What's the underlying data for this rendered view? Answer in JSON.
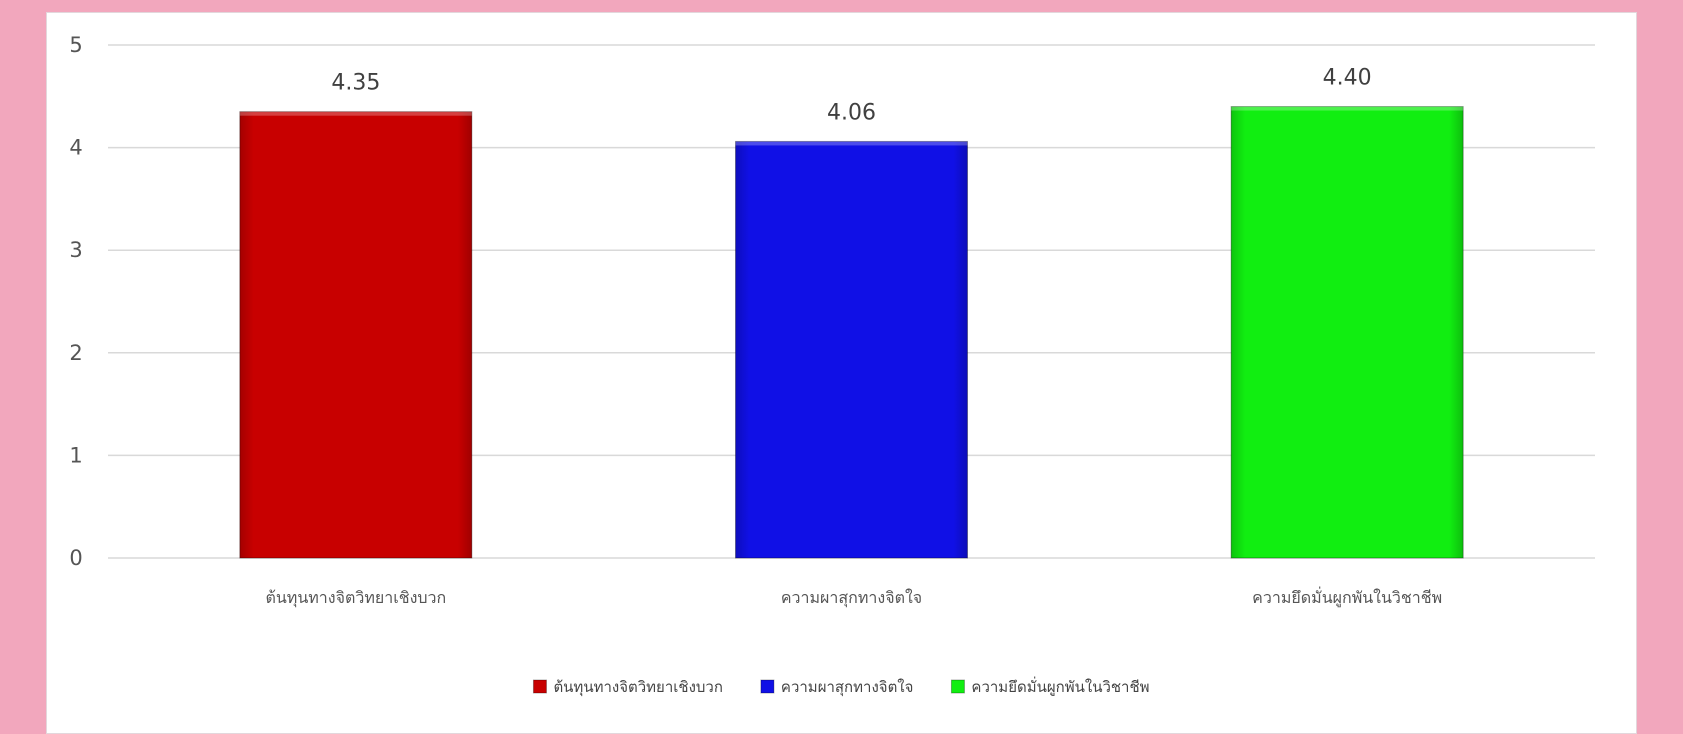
{
  "chart_data": {
    "type": "bar",
    "categories": [
      "ต้นทุนทางจิตวิทยาเชิงบวก",
      "ความผาสุกทางจิตใจ",
      "ความยึดมั่นผูกพันในวิชาชีพ"
    ],
    "values": [
      4.35,
      4.06,
      4.4
    ],
    "data_labels": [
      "4.35",
      "4.06",
      "4.40"
    ],
    "colors": [
      "#c80000",
      "#1010e6",
      "#11ee11"
    ],
    "y_ticks": [
      "0",
      "1",
      "2",
      "3",
      "4",
      "5"
    ],
    "ylim": [
      0,
      5
    ],
    "grid": true,
    "legend_position": "bottom",
    "legend": [
      "ต้นทุนทางจิตวิทยาเชิงบวก",
      "ความผาสุกทางจิตใจ",
      "ความยึดมั่นผูกพันในวิชาชีพ"
    ],
    "title": "",
    "xlabel": "",
    "ylabel": ""
  },
  "theme": {
    "page_background": "#f2a7bd",
    "panel_background": "#ffffff",
    "gridline": "#d9d9d9"
  }
}
